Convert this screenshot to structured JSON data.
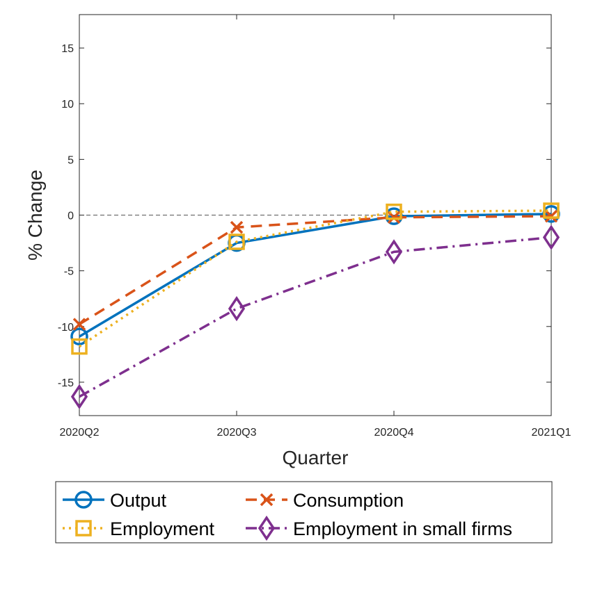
{
  "chart_data": {
    "type": "line",
    "categories": [
      "2020Q2",
      "2020Q3",
      "2020Q4",
      "2021Q1"
    ],
    "xlabel": "Quarter",
    "ylabel": "% Change",
    "ylim": [
      -18,
      18
    ],
    "yticks": [
      -15,
      -10,
      -5,
      0,
      5,
      10,
      15
    ],
    "zero_line": true,
    "grid": false,
    "legend_position": "bottom-outside",
    "series": [
      {
        "name": "Output",
        "values": [
          -10.9,
          -2.5,
          -0.1,
          0.1
        ],
        "color": "#0072BD",
        "dash": "solid",
        "marker": "circle"
      },
      {
        "name": "Consumption",
        "values": [
          -9.8,
          -1.1,
          -0.2,
          -0.1
        ],
        "color": "#D95319",
        "dash": "dashed",
        "marker": "x"
      },
      {
        "name": "Employment",
        "values": [
          -11.8,
          -2.4,
          0.3,
          0.4
        ],
        "color": "#EDB120",
        "dash": "dotted",
        "marker": "square"
      },
      {
        "name": "Employment in small firms",
        "values": [
          -16.3,
          -8.4,
          -3.3,
          -2.0
        ],
        "color": "#7E2F8E",
        "dash": "dashdot",
        "marker": "diamond"
      }
    ]
  }
}
